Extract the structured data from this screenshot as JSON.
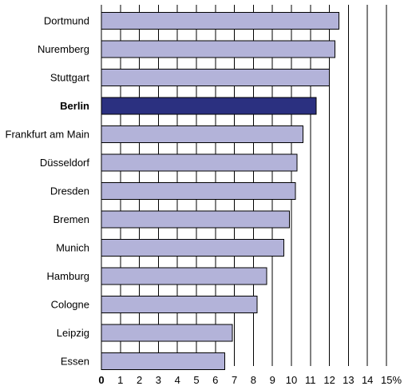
{
  "chart_data": {
    "type": "bar",
    "orientation": "horizontal",
    "categories": [
      "Dortmund",
      "Nuremberg",
      "Stuttgart",
      "Berlin",
      "Frankfurt am Main",
      "Düsseldorf",
      "Dresden",
      "Bremen",
      "Munich",
      "Hamburg",
      "Cologne",
      "Leipzig",
      "Essen"
    ],
    "values": [
      12.5,
      12.3,
      12.0,
      11.3,
      10.6,
      10.3,
      10.2,
      9.9,
      9.6,
      8.7,
      8.2,
      6.9,
      6.5
    ],
    "highlight": "Berlin",
    "xlim": [
      0,
      15
    ],
    "xticks": [
      "0",
      "1",
      "2",
      "3",
      "4",
      "5",
      "6",
      "7",
      "8",
      "9",
      "10",
      "11",
      "12",
      "13",
      "14",
      "15%"
    ],
    "title": "",
    "xlabel": "",
    "ylabel": "",
    "grid": "vertical",
    "colors": {
      "bar": "#b3b3d9",
      "highlight": "#2b3080",
      "outline": "#000000",
      "grid": "#000000"
    }
  }
}
